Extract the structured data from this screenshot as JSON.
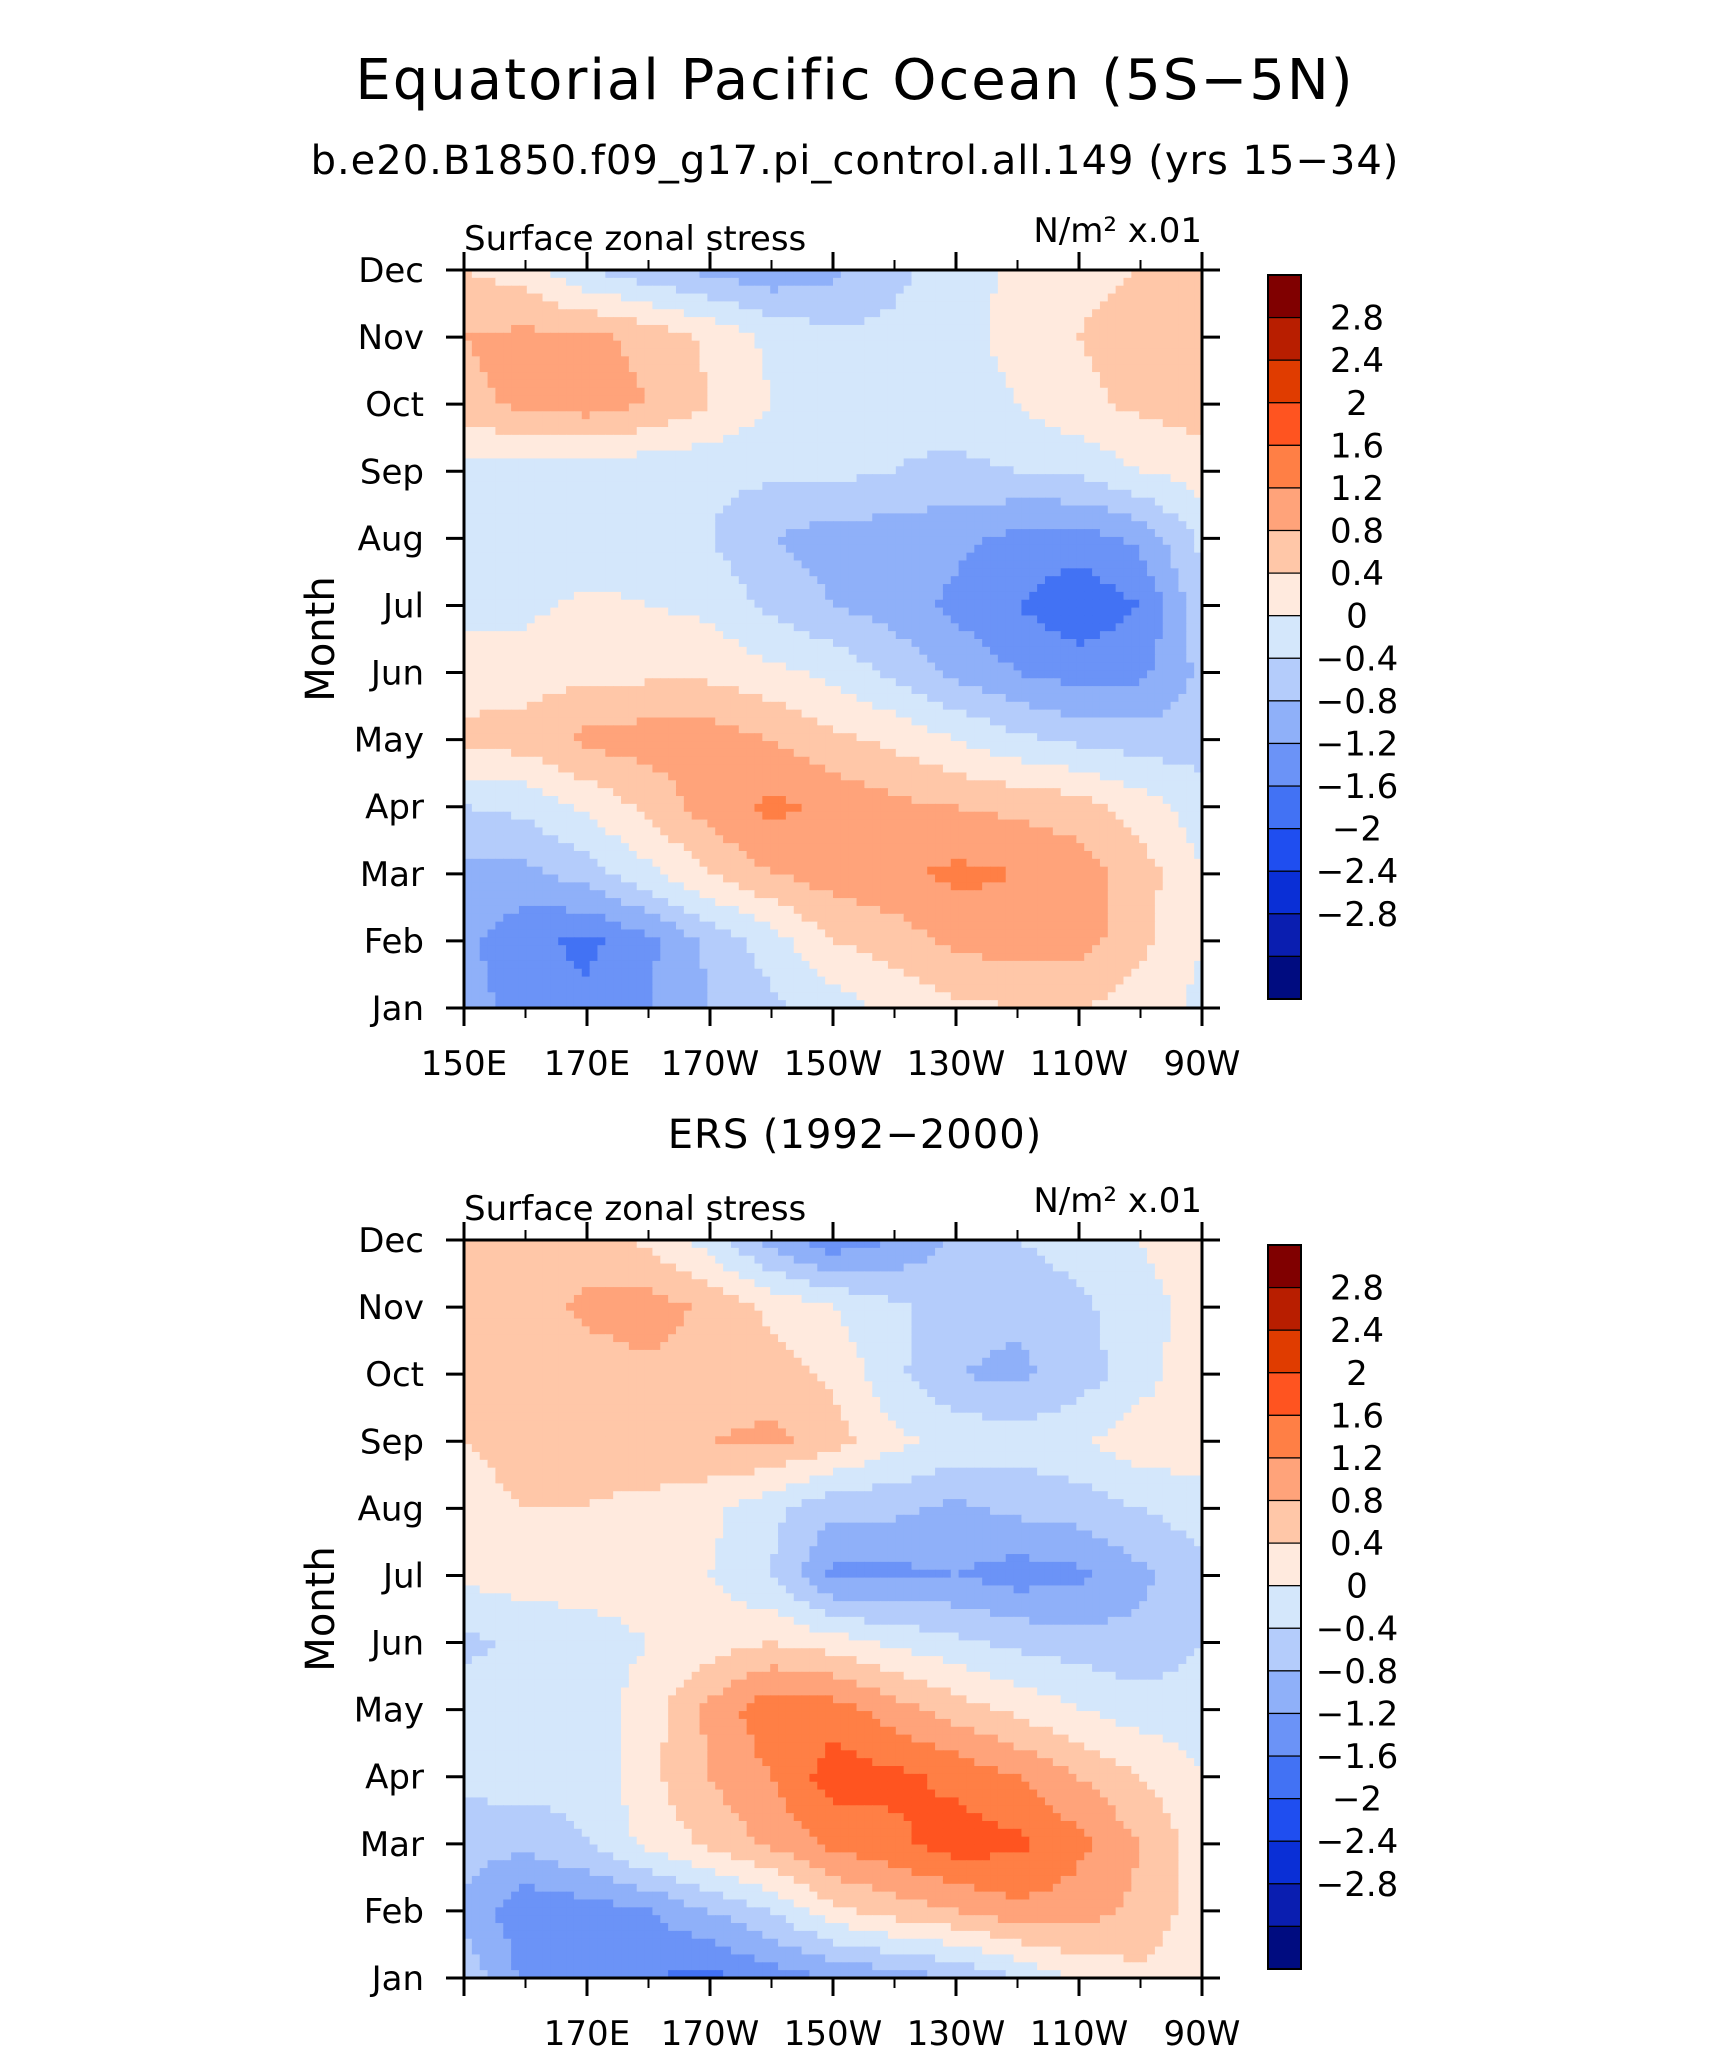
{
  "title": "Equatorial Pacific Ocean (5S−5N)",
  "panels": [
    {
      "subtitle": "b.e20.B1850.f09_g17.pi_control.all.149 (yrs 15−34)",
      "left_label": "Surface zonal stress",
      "right_label": "N/m² x.01",
      "ylabel": "Month",
      "xticks": [
        "150E",
        "170E",
        "170W",
        "150W",
        "130W",
        "110W",
        "90W"
      ]
    },
    {
      "subtitle": "ERS (1992−2000)",
      "left_label": "Surface zonal stress",
      "right_label": "N/m² x.01",
      "ylabel": "Month",
      "xticks": [
        "",
        "170E",
        "170W",
        "150W",
        "130W",
        "110W",
        "90W"
      ]
    }
  ],
  "months": [
    "Jan",
    "Feb",
    "Mar",
    "Apr",
    "May",
    "Jun",
    "Jul",
    "Aug",
    "Sep",
    "Oct",
    "Nov",
    "Dec"
  ],
  "colorbar": {
    "labels": [
      "2.8",
      "2.4",
      "2",
      "1.6",
      "1.2",
      "0.8",
      "0.4",
      "0",
      "−0.4",
      "−0.8",
      "−1.2",
      "−1.6",
      "−2",
      "−2.4",
      "−2.8"
    ],
    "colors": [
      "#800000",
      "#b81e00",
      "#e03c00",
      "#ff5420",
      "#ff7f45",
      "#ffa37a",
      "#ffc7a8",
      "#ffeade",
      "#d4e7fb",
      "#b4ccfb",
      "#8fb0f9",
      "#6b93f7",
      "#4272f4",
      "#1f4ef0",
      "#0a2fd6",
      "#0a1eb0",
      "#000c80"
    ]
  },
  "chart_data": [
    {
      "type": "heatmap",
      "title": "b.e20.B1850.f09_g17.pi_control.all.149 (yrs 15−34)",
      "variable": "Surface zonal stress",
      "units": "N/m² x.01",
      "xlabel": "",
      "ylabel": "Month",
      "x_lon_east": [
        150,
        160,
        170,
        180,
        190,
        200,
        210,
        220,
        230,
        240,
        250,
        260,
        270
      ],
      "y_months": [
        "Jan",
        "Feb",
        "Mar",
        "Apr",
        "May",
        "Jun",
        "Jul",
        "Aug",
        "Sep",
        "Oct",
        "Nov",
        "Dec"
      ],
      "levels": [
        -2.8,
        -2.4,
        -2.0,
        -1.6,
        -1.2,
        -0.8,
        -0.4,
        0,
        0.4,
        0.8,
        1.2,
        1.6,
        2.0,
        2.4,
        2.8
      ],
      "z": [
        [
          -1.0,
          -1.4,
          -1.5,
          -1.2,
          -0.8,
          -0.5,
          -0.2,
          0.1,
          0.3,
          0.4,
          0.4,
          0.2,
          -0.1
        ],
        [
          -1.1,
          -1.5,
          -1.7,
          -1.3,
          -0.7,
          -0.2,
          0.4,
          0.6,
          0.9,
          1.0,
          1.0,
          0.5,
          0.0
        ],
        [
          -0.9,
          -0.9,
          -0.6,
          -0.1,
          0.4,
          0.8,
          1.0,
          1.1,
          1.3,
          1.2,
          1.0,
          0.6,
          0.0
        ],
        [
          -0.4,
          -0.3,
          0.1,
          0.5,
          1.0,
          1.3,
          1.1,
          0.9,
          0.8,
          0.7,
          0.6,
          0.2,
          -0.2
        ],
        [
          0.5,
          0.6,
          0.9,
          1.0,
          1.0,
          0.8,
          0.5,
          0.3,
          0.0,
          -0.3,
          -0.5,
          -0.6,
          -0.6
        ],
        [
          0.2,
          0.2,
          0.3,
          0.3,
          0.3,
          0.1,
          -0.1,
          -0.5,
          -0.9,
          -1.2,
          -1.4,
          -1.3,
          -0.7
        ],
        [
          -0.1,
          -0.1,
          0.1,
          0.0,
          -0.1,
          -0.5,
          -0.8,
          -1.0,
          -1.3,
          -1.6,
          -1.9,
          -1.6,
          -0.5
        ],
        [
          -0.3,
          -0.4,
          -0.3,
          -0.3,
          -0.4,
          -0.8,
          -1.0,
          -1.0,
          -1.1,
          -1.3,
          -1.4,
          -1.1,
          -0.3
        ],
        [
          -0.2,
          -0.2,
          -0.2,
          -0.3,
          -0.3,
          -0.3,
          -0.3,
          -0.4,
          -0.5,
          -0.4,
          -0.3,
          0.0,
          0.2
        ],
        [
          0.7,
          0.9,
          1.0,
          0.8,
          0.4,
          0.0,
          -0.2,
          -0.3,
          -0.2,
          0.0,
          0.3,
          0.5,
          0.6
        ],
        [
          0.8,
          0.9,
          0.9,
          0.7,
          0.3,
          -0.1,
          -0.3,
          -0.3,
          -0.1,
          0.1,
          0.4,
          0.6,
          0.6
        ],
        [
          0.4,
          0.2,
          -0.4,
          -0.7,
          -0.9,
          -1.1,
          -0.9,
          -0.5,
          -0.2,
          0.1,
          0.3,
          0.4,
          0.4
        ]
      ]
    },
    {
      "type": "heatmap",
      "title": "ERS (1992−2000)",
      "variable": "Surface zonal stress",
      "units": "N/m² x.01",
      "xlabel": "",
      "ylabel": "Month",
      "x_lon_east": [
        150,
        160,
        170,
        180,
        190,
        200,
        210,
        220,
        230,
        240,
        250,
        260,
        270
      ],
      "y_months": [
        "Jan",
        "Feb",
        "Mar",
        "Apr",
        "May",
        "Jun",
        "Jul",
        "Aug",
        "Sep",
        "Oct",
        "Nov",
        "Dec"
      ],
      "levels": [
        -2.8,
        -2.4,
        -2.0,
        -1.6,
        -1.2,
        -0.8,
        -0.4,
        0,
        0.4,
        0.8,
        1.2,
        1.6,
        2.0,
        2.4,
        2.8
      ],
      "z": [
        [
          -0.5,
          -1.3,
          -1.4,
          -1.6,
          -1.7,
          -1.4,
          -1.2,
          -1.0,
          -0.8,
          -0.4,
          0.1,
          0.3,
          0.1
        ],
        [
          -0.9,
          -1.5,
          -1.4,
          -1.2,
          -0.8,
          -0.4,
          0.3,
          0.6,
          0.8,
          1.1,
          1.0,
          0.7,
          0.2
        ],
        [
          -0.6,
          -0.7,
          -0.4,
          0.1,
          0.5,
          0.9,
          1.3,
          1.5,
          1.8,
          1.7,
          1.3,
          0.8,
          0.2
        ],
        [
          -0.3,
          -0.2,
          -0.3,
          0.3,
          0.8,
          1.2,
          1.8,
          1.7,
          1.5,
          1.2,
          0.8,
          0.4,
          0.0
        ],
        [
          -0.2,
          -0.3,
          -0.2,
          0.2,
          0.9,
          1.5,
          1.4,
          1.0,
          0.6,
          0.3,
          0.0,
          -0.2,
          -0.2
        ],
        [
          -0.5,
          -0.3,
          -0.2,
          0.0,
          0.2,
          0.4,
          0.2,
          -0.1,
          -0.3,
          -0.5,
          -0.6,
          -0.7,
          -0.4
        ],
        [
          0.1,
          0.2,
          0.2,
          0.2,
          0.0,
          -0.4,
          -1.3,
          -1.3,
          -1.2,
          -1.4,
          -1.3,
          -0.9,
          -0.5
        ],
        [
          0.3,
          0.4,
          0.4,
          0.3,
          0.1,
          -0.3,
          -0.7,
          -0.7,
          -0.9,
          -0.7,
          -0.6,
          -0.4,
          -0.2
        ],
        [
          0.4,
          0.5,
          0.5,
          0.7,
          0.8,
          0.9,
          0.6,
          0.1,
          -0.1,
          -0.2,
          -0.1,
          0.3,
          0.2
        ],
        [
          0.4,
          0.5,
          0.6,
          0.7,
          0.6,
          0.6,
          0.3,
          -0.3,
          -0.8,
          -0.9,
          -0.6,
          -0.2,
          0.3
        ],
        [
          0.4,
          0.6,
          0.9,
          1.0,
          0.7,
          0.3,
          0.0,
          -0.3,
          -0.6,
          -0.7,
          -0.5,
          -0.1,
          0.1
        ],
        [
          0.7,
          0.6,
          0.6,
          0.3,
          -0.2,
          -1.0,
          -1.5,
          -1.2,
          -0.7,
          -0.4,
          -0.2,
          0.0,
          0.2
        ]
      ]
    }
  ]
}
